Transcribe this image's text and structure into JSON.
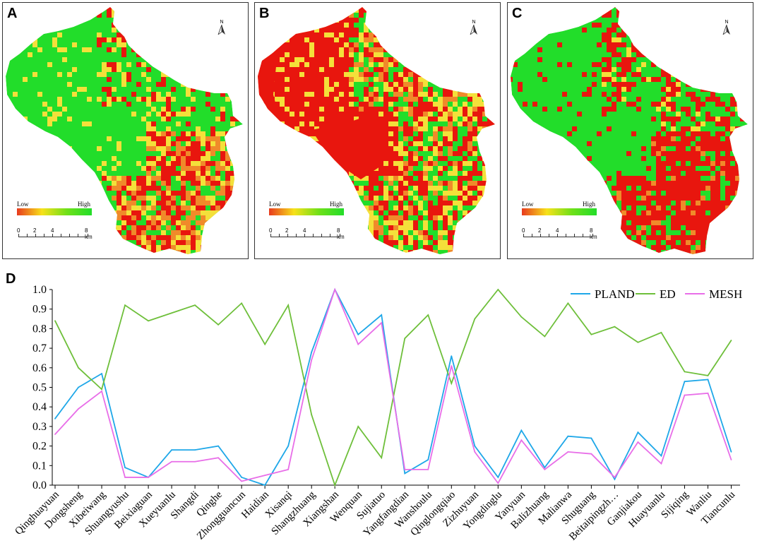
{
  "panels": [
    {
      "letter": "A",
      "low": "Low",
      "high": "High",
      "north": "N",
      "scale": [
        "0",
        "2",
        "4",
        "8 km"
      ]
    },
    {
      "letter": "B",
      "low": "Low",
      "high": "High",
      "north": "N",
      "scale": [
        "0",
        "2",
        "4",
        "8 km"
      ]
    },
    {
      "letter": "C",
      "low": "Low",
      "high": "High",
      "north": "N",
      "scale": [
        "0",
        "2",
        "4",
        "8 km"
      ]
    }
  ],
  "chart_letter": "D",
  "colors": {
    "pland": "#1ea7e8",
    "ed": "#6ebf3a",
    "mesh": "#e86ee8",
    "green": "#22dd2a",
    "red": "#e8160e",
    "yellow": "#f4e03a",
    "orange": "#f08a2a"
  },
  "chart_data": {
    "type": "line",
    "categories": [
      "Qinghuayuan",
      "Dongsheng",
      "Xibeiwang",
      "Shuangyushu",
      "Beixiaguan",
      "Xueyuanlu",
      "Shangdi",
      "Qinghe",
      "Zhongguancun",
      "Haidian",
      "Xisanqi",
      "Shangzhuang",
      "Xiangshan",
      "Wenquan",
      "Sujiatuo",
      "Yangfangdian",
      "Wanshoulu",
      "Qinglongqiao",
      "Zizhuyuan",
      "Yongdinglu",
      "Yanyuan",
      "Balizhuang",
      "Malianwa",
      "Shuguang",
      "Beitaipingzh…",
      "Ganjiakou",
      "Huayuanlu",
      "Sijiqing",
      "Wanliu",
      "Tiancunlu"
    ],
    "series": [
      {
        "name": "PLAND",
        "values": [
          0.34,
          0.5,
          0.57,
          0.09,
          0.04,
          0.18,
          0.18,
          0.2,
          0.04,
          0.0,
          0.2,
          0.68,
          1.0,
          0.77,
          0.87,
          0.06,
          0.13,
          0.66,
          0.2,
          0.04,
          0.28,
          0.09,
          0.25,
          0.24,
          0.03,
          0.27,
          0.15,
          0.53,
          0.54,
          0.17
        ]
      },
      {
        "name": "ED",
        "values": [
          0.84,
          0.6,
          0.49,
          0.92,
          0.84,
          0.88,
          0.92,
          0.82,
          0.93,
          0.72,
          0.92,
          0.36,
          0.0,
          0.3,
          0.14,
          0.75,
          0.87,
          0.52,
          0.85,
          1.0,
          0.86,
          0.76,
          0.93,
          0.77,
          0.81,
          0.73,
          0.78,
          0.58,
          0.56,
          0.74
        ]
      },
      {
        "name": "MESH",
        "values": [
          0.26,
          0.39,
          0.48,
          0.04,
          0.04,
          0.12,
          0.12,
          0.14,
          0.02,
          0.05,
          0.08,
          0.64,
          1.0,
          0.72,
          0.83,
          0.08,
          0.08,
          0.61,
          0.17,
          0.01,
          0.23,
          0.08,
          0.17,
          0.16,
          0.04,
          0.22,
          0.11,
          0.46,
          0.47,
          0.13
        ]
      }
    ],
    "yticks": [
      "0.0",
      "0.1",
      "0.2",
      "0.3",
      "0.4",
      "0.5",
      "0.6",
      "0.7",
      "0.8",
      "0.9",
      "1.0"
    ],
    "ylim": [
      0,
      1
    ],
    "legend": "top-right"
  }
}
